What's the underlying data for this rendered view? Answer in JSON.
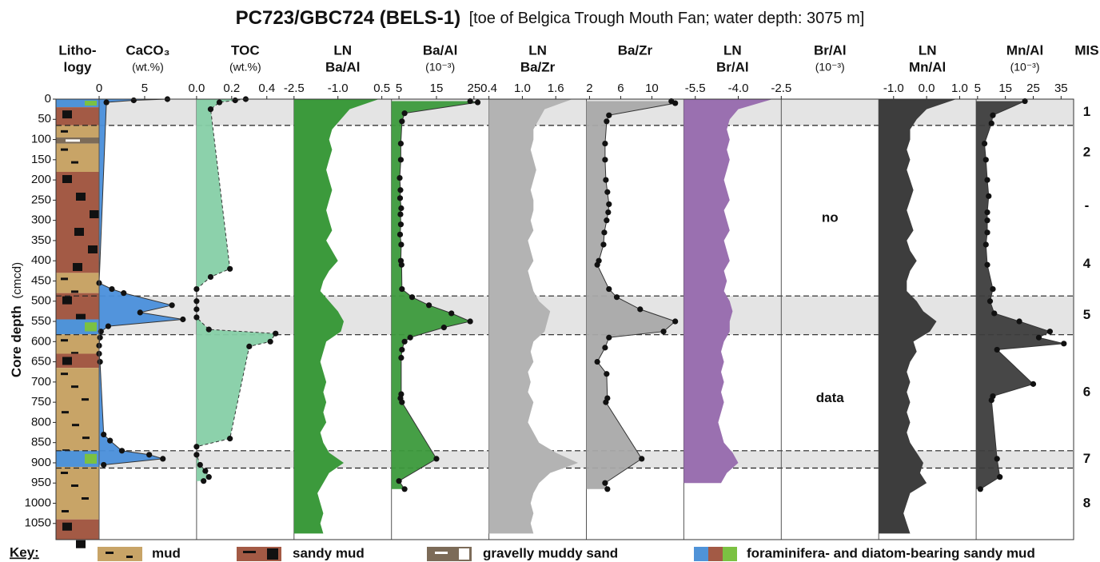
{
  "title": "PC723/GBC724 (BELS-1)",
  "subtitle": "[toe of Belgica Trough Mouth Fan; water depth: 3075 m]",
  "chart_data": {
    "type": "depth-profile",
    "y_label": "Core depth",
    "y_units": "(cmcd)",
    "ylim": [
      0,
      1090
    ],
    "yticks": [
      0,
      50,
      100,
      150,
      200,
      250,
      300,
      350,
      400,
      450,
      500,
      550,
      600,
      650,
      700,
      750,
      800,
      850,
      900,
      950,
      1000,
      1050
    ],
    "lithology_header": [
      "Litho-",
      "logy"
    ],
    "lithology": [
      {
        "top": 0,
        "bottom": 20,
        "key": 3
      },
      {
        "top": 20,
        "bottom": 65,
        "key": 1
      },
      {
        "top": 65,
        "bottom": 95,
        "key": 0
      },
      {
        "top": 95,
        "bottom": 110,
        "key": 2
      },
      {
        "top": 110,
        "bottom": 180,
        "key": 0
      },
      {
        "top": 180,
        "bottom": 430,
        "key": 1
      },
      {
        "top": 430,
        "bottom": 480,
        "key": 0
      },
      {
        "top": 480,
        "bottom": 545,
        "key": 1
      },
      {
        "top": 545,
        "bottom": 582,
        "key": 3
      },
      {
        "top": 582,
        "bottom": 630,
        "key": 0
      },
      {
        "top": 630,
        "bottom": 665,
        "key": 1
      },
      {
        "top": 665,
        "bottom": 870,
        "key": 0
      },
      {
        "top": 870,
        "bottom": 910,
        "key": 3
      },
      {
        "top": 910,
        "bottom": 1040,
        "key": 0
      },
      {
        "top": 1040,
        "bottom": 1090,
        "key": 1
      }
    ],
    "mis_header": "MIS",
    "mis": [
      {
        "label": "1",
        "top": 0,
        "bottom": 65,
        "shaded": true
      },
      {
        "label": "2",
        "top": 65,
        "bottom": 200,
        "shaded": false
      },
      {
        "label": "-",
        "top": 200,
        "bottom": 330,
        "shaded": false
      },
      {
        "label": "4",
        "top": 330,
        "bottom": 487,
        "shaded": false
      },
      {
        "label": "5",
        "top": 487,
        "bottom": 583,
        "shaded": true
      },
      {
        "label": "6",
        "top": 583,
        "bottom": 870,
        "shaded": false
      },
      {
        "label": "7",
        "top": 870,
        "bottom": 913,
        "shaded": true
      },
      {
        "label": "8",
        "top": 913,
        "bottom": 1090,
        "shaded": false
      }
    ],
    "panels": [
      {
        "header": [
          "CaCO₃"
        ],
        "units": "(wt.%)",
        "xlim": [
          0,
          10.7
        ],
        "xticks": [
          0,
          5
        ],
        "fill": "#4a8fdb",
        "style": "points",
        "depth": [
          0,
          3,
          8,
          455,
          470,
          480,
          510,
          528,
          545,
          562,
          575,
          590,
          610,
          630,
          650,
          830,
          845,
          870,
          880,
          890,
          905
        ],
        "values": [
          7.5,
          3.8,
          0.8,
          0,
          1.4,
          2.7,
          8.0,
          4.5,
          9.2,
          1.0,
          0.2,
          0.1,
          0,
          0,
          0.1,
          0.5,
          1.2,
          2.5,
          5.5,
          7.0,
          0.5
        ]
      },
      {
        "header": [
          "TOC"
        ],
        "units": "(wt.%)",
        "xlim": [
          0,
          0.555
        ],
        "xticks": [
          {
            "value": 0,
            "label": "0.0"
          },
          0.2,
          0.4
        ],
        "fill": "#86cfa6",
        "style": "points",
        "dashed": true,
        "depth": [
          0,
          3,
          8,
          25,
          420,
          440,
          470,
          500,
          520,
          540,
          570,
          580,
          600,
          612,
          840,
          860,
          880,
          905,
          920,
          935,
          945
        ],
        "values": [
          0.28,
          0.22,
          0.13,
          0.08,
          0.19,
          0.08,
          0,
          0,
          0,
          0,
          0.07,
          0.45,
          0.42,
          0.3,
          0.19,
          0,
          0,
          0.02,
          0.05,
          0.07,
          0.04
        ]
      },
      {
        "header": [
          "LN",
          "Ba/Al"
        ],
        "xlim": [
          -2.5,
          0.83
        ],
        "xticks": [
          -2.5,
          {
            "value": -1,
            "label": "-1.0"
          },
          0.5
        ],
        "fill": "#3c9a3c",
        "style": "area",
        "depth": [
          0,
          25,
          50,
          75,
          100,
          125,
          150,
          175,
          200,
          225,
          250,
          275,
          300,
          325,
          350,
          375,
          400,
          425,
          450,
          475,
          500,
          525,
          550,
          575,
          600,
          625,
          650,
          675,
          700,
          725,
          750,
          775,
          800,
          825,
          850,
          875,
          900,
          925,
          950,
          975,
          1000,
          1025,
          1050,
          1075
        ],
        "values": [
          0.4,
          -0.6,
          -0.9,
          -1.2,
          -1.3,
          -1.2,
          -1.3,
          -1.4,
          -1.3,
          -1.2,
          -1.3,
          -1.4,
          -1.3,
          -1.2,
          -1.4,
          -1.2,
          -1.0,
          -1.3,
          -1.5,
          -1.6,
          -1.3,
          -1.0,
          -0.8,
          -0.9,
          -1.4,
          -1.5,
          -1.6,
          -1.5,
          -1.4,
          -1.5,
          -1.4,
          -1.5,
          -1.4,
          -1.6,
          -1.5,
          -1.3,
          -0.8,
          -1.3,
          -1.5,
          -1.7,
          -1.6,
          -1.5,
          -1.6,
          -1.5
        ]
      },
      {
        "header": [
          "Ba/Al"
        ],
        "units": "(10⁻³)",
        "xlim": [
          3,
          29
        ],
        "xticks": [
          5,
          15,
          25
        ],
        "fill": "#3c9a3c",
        "style": "points",
        "depth": [
          5,
          8,
          35,
          55,
          110,
          150,
          195,
          225,
          245,
          270,
          285,
          310,
          335,
          360,
          400,
          410,
          470,
          490,
          510,
          530,
          550,
          565,
          590,
          600,
          620,
          640,
          730,
          740,
          750,
          890,
          945,
          965
        ],
        "values": [
          24,
          26,
          6.5,
          5.8,
          5.5,
          5.5,
          5.2,
          5.4,
          5.3,
          5.6,
          5.4,
          5.5,
          5.3,
          5.6,
          5.5,
          5.7,
          5.8,
          8.5,
          13,
          19,
          24,
          17,
          8,
          6.5,
          5.8,
          5.6,
          5.6,
          5.4,
          5.8,
          15,
          5.0,
          6.5
        ]
      },
      {
        "header": [
          "LN",
          "Ba/Zr"
        ],
        "xlim": [
          0.4,
          2.15
        ],
        "xticks": [
          0.4,
          {
            "value": 1,
            "label": "1.0"
          },
          1.6
        ],
        "fill": "#b3b3b3",
        "style": "area",
        "depth": [
          0,
          25,
          50,
          75,
          100,
          125,
          150,
          175,
          200,
          225,
          250,
          275,
          300,
          325,
          350,
          375,
          400,
          425,
          450,
          475,
          500,
          525,
          550,
          575,
          600,
          625,
          650,
          675,
          700,
          725,
          750,
          775,
          800,
          825,
          850,
          875,
          900,
          925,
          950,
          975,
          1000,
          1025,
          1050,
          1075
        ],
        "values": [
          1.9,
          1.4,
          1.3,
          1.2,
          1.2,
          1.15,
          1.2,
          1.25,
          1.2,
          1.15,
          1.2,
          1.2,
          1.15,
          1.2,
          1.1,
          1.15,
          1.2,
          1.1,
          1.15,
          1.2,
          1.3,
          1.5,
          1.45,
          1.4,
          1.2,
          1.15,
          1.2,
          1.1,
          1.15,
          1.1,
          1.2,
          1.15,
          1.1,
          1.2,
          1.3,
          1.6,
          2.0,
          1.5,
          1.3,
          1.2,
          1.15,
          1.2,
          1.15,
          1.2
        ]
      },
      {
        "header": [
          "Ba/Zr"
        ],
        "xlim": [
          1.6,
          14.1
        ],
        "xticks": [
          2,
          6,
          10
        ],
        "fill": "#a9a9a9",
        "style": "points",
        "depth": [
          5,
          10,
          40,
          55,
          110,
          150,
          200,
          230,
          260,
          280,
          300,
          330,
          360,
          400,
          410,
          470,
          490,
          520,
          550,
          575,
          590,
          615,
          650,
          680,
          740,
          750,
          890,
          950,
          965
        ],
        "values": [
          12.5,
          13,
          4.5,
          4.2,
          4.0,
          4.0,
          4.1,
          4.3,
          4.5,
          4.4,
          4.2,
          3.9,
          3.8,
          3.2,
          3.0,
          4.5,
          5.5,
          8.5,
          13,
          11.5,
          4.5,
          4.0,
          3.0,
          4.2,
          4.3,
          4.1,
          8.7,
          4.0,
          4.3
        ]
      },
      {
        "header": [
          "LN",
          "Br/Al"
        ],
        "xlim": [
          -5.9,
          -2.5
        ],
        "xticks": [
          -5.5,
          {
            "value": -4,
            "label": "-4.0"
          },
          -2.5
        ],
        "fill": "#9a70b0",
        "style": "area",
        "depth": [
          0,
          25,
          50,
          75,
          100,
          125,
          150,
          175,
          200,
          225,
          250,
          275,
          300,
          325,
          350,
          375,
          400,
          425,
          450,
          475,
          500,
          525,
          550,
          575,
          600,
          625,
          650,
          675,
          700,
          725,
          750,
          775,
          800,
          825,
          850,
          875,
          900,
          925,
          950
        ],
        "values": [
          -2.8,
          -4.0,
          -4.3,
          -4.4,
          -4.3,
          -4.4,
          -4.3,
          -4.4,
          -4.5,
          -4.4,
          -4.3,
          -4.5,
          -4.4,
          -4.3,
          -4.5,
          -4.4,
          -4.3,
          -4.5,
          -4.4,
          -4.5,
          -4.3,
          -4.2,
          -4.3,
          -4.3,
          -4.5,
          -4.6,
          -4.5,
          -4.6,
          -4.5,
          -4.6,
          -4.5,
          -4.6,
          -4.7,
          -4.6,
          -4.5,
          -4.2,
          -4.0,
          -4.4,
          -4.6
        ]
      },
      {
        "header": [
          "Br/Al"
        ],
        "units": "(10⁻³)",
        "note": [
          "no",
          "data"
        ],
        "style": "none"
      },
      {
        "header": [
          "LN",
          "Mn/Al"
        ],
        "xlim": [
          -1.45,
          1.5
        ],
        "xticks": [
          {
            "value": -1,
            "label": "-1.0"
          },
          {
            "value": 0,
            "label": "0.0"
          },
          {
            "value": 1,
            "label": "1.0"
          }
        ],
        "fill": "#3d3d3d",
        "style": "area",
        "depth": [
          0,
          25,
          50,
          75,
          100,
          125,
          150,
          175,
          200,
          225,
          250,
          275,
          300,
          325,
          350,
          375,
          400,
          425,
          450,
          475,
          500,
          525,
          550,
          575,
          600,
          625,
          650,
          675,
          700,
          725,
          750,
          775,
          800,
          825,
          850,
          875,
          900,
          925,
          950,
          975,
          1000,
          1025,
          1050,
          1075
        ],
        "values": [
          0.9,
          0.0,
          -0.3,
          -0.5,
          -0.5,
          -0.6,
          -0.5,
          -0.6,
          -0.5,
          -0.4,
          -0.5,
          -0.6,
          -0.5,
          -0.4,
          -0.6,
          -0.5,
          -0.3,
          -0.5,
          -0.6,
          -0.6,
          -0.3,
          -0.1,
          0.3,
          0.1,
          -0.4,
          -0.3,
          -0.5,
          -0.6,
          -0.5,
          -0.6,
          -0.5,
          -0.6,
          -0.5,
          -0.6,
          -0.5,
          -0.3,
          -0.1,
          -0.2,
          0.0,
          -0.5,
          -0.6,
          -0.7,
          -0.6,
          -0.5
        ]
      },
      {
        "header": [
          "Mn/Al"
        ],
        "units": "(10⁻³)",
        "xlim": [
          4.5,
          39.5
        ],
        "xticks": [
          5,
          15,
          25,
          35
        ],
        "fill": "#3d3d3d",
        "style": "points",
        "depth": [
          5,
          40,
          60,
          110,
          150,
          200,
          240,
          280,
          300,
          330,
          360,
          410,
          470,
          500,
          530,
          550,
          575,
          590,
          605,
          620,
          705,
          735,
          745,
          890,
          935,
          965
        ],
        "values": [
          22,
          10.5,
          10,
          7.5,
          8,
          8.5,
          9,
          8.5,
          8.5,
          8.5,
          8,
          8.5,
          10.5,
          9.5,
          11,
          20,
          31,
          27,
          36,
          12,
          25,
          10.5,
          10,
          12,
          13,
          6
        ]
      }
    ],
    "key": {
      "title": "Key:",
      "items": [
        "mud",
        "sandy mud",
        "gravelly muddy sand",
        "foraminifera- and diatom-bearing sandy mud"
      ]
    }
  }
}
